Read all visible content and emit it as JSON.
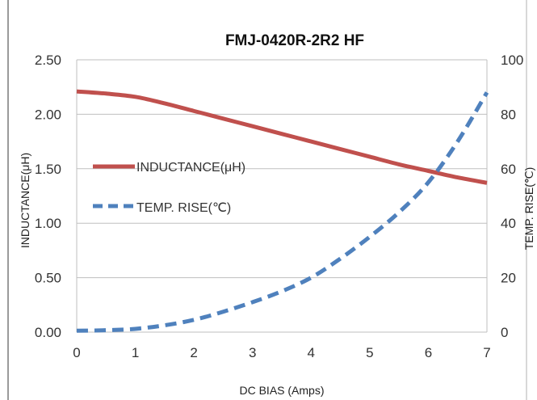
{
  "chart_data": {
    "type": "line",
    "title": "FMJ-0420R-2R2 HF",
    "xlabel": "DC BIAS  (Amps)",
    "ylabel_left": "INDUCTANCE(μH)",
    "ylabel_right": "TEMP. RISE(℃)",
    "x_ticks": [
      "0",
      "1",
      "2",
      "3",
      "4",
      "5",
      "6",
      "7"
    ],
    "y_left_ticks": [
      "0.00",
      "0.50",
      "1.00",
      "1.50",
      "2.00",
      "2.50"
    ],
    "y_right_ticks": [
      "0",
      "20",
      "40",
      "60",
      "80",
      "100"
    ],
    "xlim": [
      0,
      7
    ],
    "ylim_left": [
      0,
      2.5
    ],
    "ylim_right": [
      0,
      100
    ],
    "grid": true,
    "legend_position": "center-left",
    "series": [
      {
        "name": "INDUCTANCE(μH)",
        "axis": "left",
        "style": "solid",
        "color": "#c0504d",
        "x": [
          0,
          0.5,
          1,
          1.5,
          2,
          2.5,
          3,
          3.5,
          4,
          4.5,
          5,
          5.5,
          6,
          6.5,
          7
        ],
        "values": [
          2.21,
          2.19,
          2.16,
          2.1,
          2.03,
          1.96,
          1.89,
          1.82,
          1.75,
          1.68,
          1.61,
          1.54,
          1.48,
          1.42,
          1.37
        ]
      },
      {
        "name": "TEMP. RISE(℃)",
        "axis": "right",
        "style": "dashed",
        "color": "#4f81bd",
        "x": [
          0,
          0.5,
          1,
          1.5,
          2,
          2.5,
          3,
          3.5,
          4,
          4.5,
          5,
          5.5,
          6,
          6.5,
          7
        ],
        "values": [
          0.5,
          0.7,
          1.2,
          2.5,
          4.5,
          7.5,
          11,
          15,
          20,
          27,
          35,
          44,
          55,
          70,
          88
        ]
      }
    ]
  }
}
